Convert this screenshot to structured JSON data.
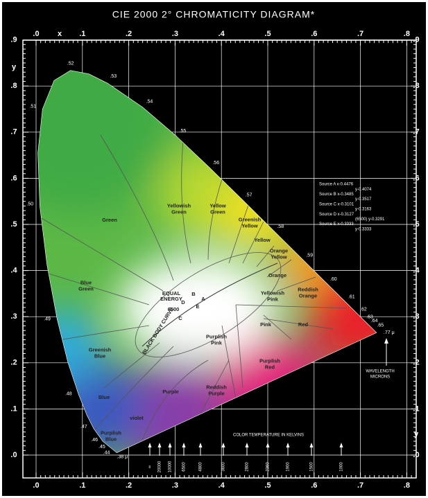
{
  "title": "CIE 2000 2° CHROMATICITY DIAGRAM*",
  "x_axis": {
    "letter": "x",
    "labels": [
      ".0",
      ".1",
      ".2",
      ".3",
      ".4",
      ".5",
      ".6",
      ".7",
      ".8"
    ]
  },
  "y_axis": {
    "letter": "y",
    "labels": [
      ".0",
      ".1",
      ".2",
      ".3",
      ".4",
      ".5",
      ".6",
      ".7",
      ".8",
      ".9"
    ]
  },
  "wavelengths": [
    ".38 μ",
    ".44",
    ".45",
    ".46",
    ".47",
    ".48",
    ".49",
    ".50",
    ".51",
    ".52",
    ".53",
    ".54",
    ".55",
    ".56",
    ".57",
    ".58",
    ".59",
    ".60",
    ".61",
    ".62",
    ".63",
    ".64",
    ".65",
    ".77 μ"
  ],
  "regions": [
    {
      "lines": [
        "Green"
      ]
    },
    {
      "lines": [
        "Yellowish",
        "Green"
      ]
    },
    {
      "lines": [
        "Yellow",
        "Green"
      ]
    },
    {
      "lines": [
        "Greenish",
        "Yellow"
      ]
    },
    {
      "lines": [
        "Yellow"
      ]
    },
    {
      "lines": [
        "Orange",
        "Yellow"
      ]
    },
    {
      "lines": [
        "Orange"
      ]
    },
    {
      "lines": [
        "Reddish",
        "Orange"
      ]
    },
    {
      "lines": [
        "Blue",
        "Green"
      ]
    },
    {
      "lines": [
        "Yellowish",
        "Pink"
      ]
    },
    {
      "lines": [
        "Pink"
      ]
    },
    {
      "lines": [
        "Red"
      ]
    },
    {
      "lines": [
        "Greenish",
        "Blue"
      ]
    },
    {
      "lines": [
        "Purplish",
        "Pink"
      ]
    },
    {
      "lines": [
        "Purplish",
        "Red"
      ]
    },
    {
      "lines": [
        "Purple"
      ]
    },
    {
      "lines": [
        "Reddish",
        "Purple"
      ]
    },
    {
      "lines": [
        "Blue"
      ]
    },
    {
      "lines": [
        "violet"
      ]
    },
    {
      "lines": [
        "Purplish",
        "Blue"
      ]
    }
  ],
  "white_point": {
    "lines": [
      "EQUAL",
      "ENERGY"
    ],
    "temp": "6500",
    "letters": [
      "B",
      "A",
      "D",
      "E",
      "C"
    ]
  },
  "black_body_label": "BLACK BODY CURVE",
  "sources": [
    "Source A x-0.4476",
    "y-0.4074",
    "Source B x-0.3485",
    "y-0.3517",
    "Source C x-0.3101",
    "y-0.3163",
    "Source D x-0.3127",
    "(6500)  y-0.3291",
    "Source E x-0.3333",
    "y-0.3333"
  ],
  "wavelength_note": [
    "WAVELENGTH",
    "MICRONS"
  ],
  "temperature": {
    "title": "COLOR TEMPERATURE IN KELVINS",
    "labels": [
      "∞",
      "20000",
      "10000",
      "6500",
      "4800",
      "3600",
      "2800",
      "2360",
      "1900",
      "1500",
      "1000"
    ]
  }
}
